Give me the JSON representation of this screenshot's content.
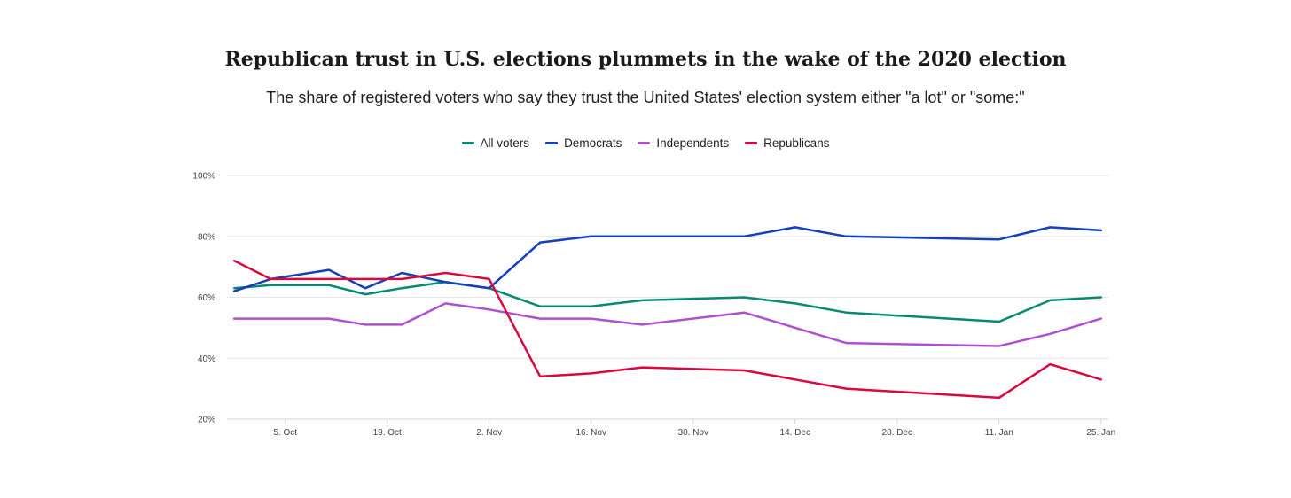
{
  "title": "Republican trust in U.S. elections plummets in the wake of the 2020 election",
  "subtitle": "The share of registered voters who say they trust the United States' election system either \"a lot\" or \"some:\"",
  "chart_data": {
    "type": "line",
    "ylim": [
      20,
      100
    ],
    "yticks": [
      20,
      40,
      60,
      80,
      100
    ],
    "ytick_labels": [
      "20%",
      "40%",
      "60%",
      "80%",
      "100%"
    ],
    "xlim": [
      "2020-09-27",
      "2021-01-26"
    ],
    "xticks": [
      "2020-10-05",
      "2020-10-19",
      "2020-11-02",
      "2020-11-16",
      "2020-11-30",
      "2020-12-14",
      "2020-12-28",
      "2021-01-11",
      "2021-01-25"
    ],
    "xtick_labels": [
      "5. Oct",
      "19. Oct",
      "2. Nov",
      "16. Nov",
      "30. Nov",
      "14. Dec",
      "28. Dec",
      "11. Jan",
      "25. Jan"
    ],
    "x": [
      "2020-09-28",
      "2020-10-03",
      "2020-10-11",
      "2020-10-16",
      "2020-10-21",
      "2020-10-27",
      "2020-11-02",
      "2020-11-09",
      "2020-11-16",
      "2020-11-23",
      "2020-12-07",
      "2020-12-14",
      "2020-12-21",
      "2021-01-11",
      "2021-01-18",
      "2021-01-25"
    ],
    "legend_position": "top-center",
    "grid": "horizontal",
    "series": [
      {
        "name": "All voters",
        "color": "#078a74",
        "values": [
          63,
          64,
          64,
          61,
          63,
          65,
          63,
          57,
          57,
          59,
          60,
          58,
          55,
          52,
          59,
          60
        ]
      },
      {
        "name": "Democrats",
        "color": "#1440b8",
        "values": [
          62,
          66,
          69,
          63,
          68,
          65,
          63,
          78,
          80,
          80,
          80,
          83,
          80,
          79,
          83,
          82
        ]
      },
      {
        "name": "Independents",
        "color": "#b04fd0",
        "values": [
          53,
          53,
          53,
          51,
          51,
          58,
          56,
          53,
          53,
          51,
          55,
          50,
          45,
          44,
          48,
          53
        ]
      },
      {
        "name": "Republicans",
        "color": "#d9083e",
        "values": [
          72,
          66,
          66,
          66,
          66,
          68,
          66,
          34,
          35,
          37,
          36,
          33,
          30,
          27,
          38,
          33
        ]
      }
    ]
  }
}
